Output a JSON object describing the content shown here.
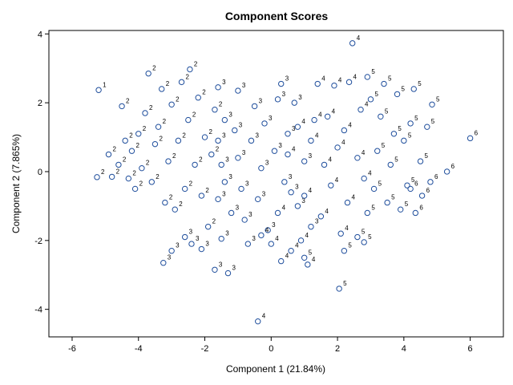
{
  "chart_data": {
    "type": "scatter",
    "title": "Component Scores",
    "xlabel": "Component 1 (21.84%)",
    "ylabel": "Component 2 (7.865%)",
    "xlim": [
      -6.7,
      7.0
    ],
    "ylim": [
      -4.8,
      4.1
    ],
    "xticks": [
      "-6",
      "-4",
      "-2",
      "0",
      "2",
      "4",
      "6"
    ],
    "yticks": [
      "-4",
      "-2",
      "0",
      "2",
      "4"
    ],
    "marker_color": "#1f4e9c",
    "grid": false,
    "legend": "none",
    "points": [
      {
        "x": -5.2,
        "y": 2.37,
        "label": "1"
      },
      {
        "x": -5.25,
        "y": -0.16,
        "label": "2"
      },
      {
        "x": -4.9,
        "y": 0.5,
        "label": "2"
      },
      {
        "x": -4.8,
        "y": -0.15,
        "label": "2"
      },
      {
        "x": -4.6,
        "y": 0.2,
        "label": "2"
      },
      {
        "x": -4.5,
        "y": 1.9,
        "label": "2"
      },
      {
        "x": -4.4,
        "y": 0.9,
        "label": "2"
      },
      {
        "x": -4.3,
        "y": -0.2,
        "label": "2"
      },
      {
        "x": -4.2,
        "y": 0.6,
        "label": "2"
      },
      {
        "x": -4.1,
        "y": -0.5,
        "label": "2"
      },
      {
        "x": -4.0,
        "y": 1.1,
        "label": "2"
      },
      {
        "x": -3.9,
        "y": 0.1,
        "label": "2"
      },
      {
        "x": -3.8,
        "y": 1.7,
        "label": "2"
      },
      {
        "x": -3.7,
        "y": 2.85,
        "label": "2"
      },
      {
        "x": -3.6,
        "y": -0.3,
        "label": "2"
      },
      {
        "x": -3.5,
        "y": 0.8,
        "label": "2"
      },
      {
        "x": -3.4,
        "y": 1.3,
        "label": "2"
      },
      {
        "x": -3.3,
        "y": 2.4,
        "label": "2"
      },
      {
        "x": -3.2,
        "y": -0.9,
        "label": "2"
      },
      {
        "x": -3.1,
        "y": 0.3,
        "label": "2"
      },
      {
        "x": -3.0,
        "y": 1.95,
        "label": "2"
      },
      {
        "x": -2.9,
        "y": -1.1,
        "label": "2"
      },
      {
        "x": -2.8,
        "y": 0.9,
        "label": "2"
      },
      {
        "x": -2.7,
        "y": 2.6,
        "label": "2"
      },
      {
        "x": -2.6,
        "y": -0.5,
        "label": "2"
      },
      {
        "x": -2.5,
        "y": 1.5,
        "label": "2"
      },
      {
        "x": -2.45,
        "y": 2.97,
        "label": "2"
      },
      {
        "x": -2.3,
        "y": 0.2,
        "label": "2"
      },
      {
        "x": -2.2,
        "y": 2.15,
        "label": "2"
      },
      {
        "x": -2.1,
        "y": -0.7,
        "label": "2"
      },
      {
        "x": -2.0,
        "y": 1.0,
        "label": "2"
      },
      {
        "x": -1.9,
        "y": -1.6,
        "label": "2"
      },
      {
        "x": -1.8,
        "y": 0.5,
        "label": "2"
      },
      {
        "x": -1.7,
        "y": 1.8,
        "label": "2"
      },
      {
        "x": -3.25,
        "y": -2.65,
        "label": "3"
      },
      {
        "x": -3.0,
        "y": -2.3,
        "label": "3"
      },
      {
        "x": -2.6,
        "y": -1.9,
        "label": "3"
      },
      {
        "x": -2.4,
        "y": -2.1,
        "label": "3"
      },
      {
        "x": -2.1,
        "y": -2.25,
        "label": "3"
      },
      {
        "x": -1.7,
        "y": -2.85,
        "label": "3"
      },
      {
        "x": -1.3,
        "y": -2.95,
        "label": "3"
      },
      {
        "x": -1.5,
        "y": -1.95,
        "label": "3"
      },
      {
        "x": -1.2,
        "y": -1.2,
        "label": "3"
      },
      {
        "x": -1.6,
        "y": -0.8,
        "label": "3"
      },
      {
        "x": -1.4,
        "y": -0.3,
        "label": "3"
      },
      {
        "x": -1.5,
        "y": 0.2,
        "label": "3"
      },
      {
        "x": -1.6,
        "y": 0.9,
        "label": "3"
      },
      {
        "x": -1.4,
        "y": 1.5,
        "label": "3"
      },
      {
        "x": -1.6,
        "y": 2.45,
        "label": "3"
      },
      {
        "x": -1.0,
        "y": 2.35,
        "label": "3"
      },
      {
        "x": -1.1,
        "y": 1.2,
        "label": "3"
      },
      {
        "x": -1.0,
        "y": 0.4,
        "label": "3"
      },
      {
        "x": -0.9,
        "y": -0.5,
        "label": "3"
      },
      {
        "x": -0.8,
        "y": -1.4,
        "label": "3"
      },
      {
        "x": -0.7,
        "y": -2.1,
        "label": "3"
      },
      {
        "x": -0.6,
        "y": 0.9,
        "label": "3"
      },
      {
        "x": -0.5,
        "y": 1.9,
        "label": "3"
      },
      {
        "x": -0.4,
        "y": -0.8,
        "label": "3"
      },
      {
        "x": -0.3,
        "y": 0.1,
        "label": "3"
      },
      {
        "x": -0.2,
        "y": 1.4,
        "label": "3"
      },
      {
        "x": -0.1,
        "y": -1.7,
        "label": "3"
      },
      {
        "x": 0.1,
        "y": 0.6,
        "label": "3"
      },
      {
        "x": 0.2,
        "y": 2.1,
        "label": "3"
      },
      {
        "x": 0.3,
        "y": 2.55,
        "label": "3"
      },
      {
        "x": 0.4,
        "y": -0.3,
        "label": "3"
      },
      {
        "x": 0.5,
        "y": 1.1,
        "label": "3"
      },
      {
        "x": 0.7,
        "y": 2.0,
        "label": "3"
      },
      {
        "x": 0.8,
        "y": -1.0,
        "label": "3"
      },
      {
        "x": 1.0,
        "y": 0.3,
        "label": "3"
      },
      {
        "x": 1.2,
        "y": -1.6,
        "label": "3"
      },
      {
        "x": 0.6,
        "y": -0.6,
        "label": "3"
      },
      {
        "x": -0.4,
        "y": -4.35,
        "label": "4"
      },
      {
        "x": -0.3,
        "y": -1.85,
        "label": "4"
      },
      {
        "x": 0.0,
        "y": -2.1,
        "label": "4"
      },
      {
        "x": 0.3,
        "y": -2.6,
        "label": "4"
      },
      {
        "x": 0.6,
        "y": -2.3,
        "label": "4"
      },
      {
        "x": 0.9,
        "y": -2.0,
        "label": "4"
      },
      {
        "x": 1.1,
        "y": -2.7,
        "label": "4"
      },
      {
        "x": 0.5,
        "y": 0.5,
        "label": "4"
      },
      {
        "x": 0.8,
        "y": 1.3,
        "label": "4"
      },
      {
        "x": 1.0,
        "y": -0.7,
        "label": "4"
      },
      {
        "x": 1.2,
        "y": 0.9,
        "label": "4"
      },
      {
        "x": 1.4,
        "y": 2.55,
        "label": "4"
      },
      {
        "x": 1.5,
        "y": -1.3,
        "label": "4"
      },
      {
        "x": 1.6,
        "y": 0.2,
        "label": "4"
      },
      {
        "x": 1.7,
        "y": 1.6,
        "label": "4"
      },
      {
        "x": 1.8,
        "y": -0.4,
        "label": "4"
      },
      {
        "x": 1.9,
        "y": 2.5,
        "label": "4"
      },
      {
        "x": 2.0,
        "y": 0.7,
        "label": "4"
      },
      {
        "x": 2.1,
        "y": -1.8,
        "label": "4"
      },
      {
        "x": 2.2,
        "y": 1.2,
        "label": "4"
      },
      {
        "x": 2.3,
        "y": -0.9,
        "label": "4"
      },
      {
        "x": 2.35,
        "y": 2.6,
        "label": "4"
      },
      {
        "x": 2.45,
        "y": 3.73,
        "label": "4"
      },
      {
        "x": 2.6,
        "y": 0.4,
        "label": "4"
      },
      {
        "x": 2.7,
        "y": 1.8,
        "label": "4"
      },
      {
        "x": 2.8,
        "y": -0.2,
        "label": "4"
      },
      {
        "x": 1.3,
        "y": 1.5,
        "label": "4"
      },
      {
        "x": 0.2,
        "y": -1.2,
        "label": "4"
      },
      {
        "x": 2.05,
        "y": -3.4,
        "label": "5"
      },
      {
        "x": 1.0,
        "y": -2.5,
        "label": "5"
      },
      {
        "x": 2.2,
        "y": -2.3,
        "label": "5"
      },
      {
        "x": 2.6,
        "y": -1.9,
        "label": "5"
      },
      {
        "x": 2.8,
        "y": -2.05,
        "label": "5"
      },
      {
        "x": 2.9,
        "y": -1.2,
        "label": "5"
      },
      {
        "x": 3.1,
        "y": -0.5,
        "label": "5"
      },
      {
        "x": 3.2,
        "y": 0.6,
        "label": "5"
      },
      {
        "x": 3.3,
        "y": 1.6,
        "label": "5"
      },
      {
        "x": 3.4,
        "y": 2.55,
        "label": "5"
      },
      {
        "x": 3.5,
        "y": -0.9,
        "label": "5"
      },
      {
        "x": 3.6,
        "y": 0.2,
        "label": "5"
      },
      {
        "x": 3.7,
        "y": 1.1,
        "label": "5"
      },
      {
        "x": 3.8,
        "y": 2.25,
        "label": "5"
      },
      {
        "x": 3.9,
        "y": -1.1,
        "label": "5"
      },
      {
        "x": 4.0,
        "y": 0.9,
        "label": "5"
      },
      {
        "x": 4.1,
        "y": -0.4,
        "label": "5"
      },
      {
        "x": 4.2,
        "y": 1.4,
        "label": "5"
      },
      {
        "x": 4.3,
        "y": 2.4,
        "label": "5"
      },
      {
        "x": 4.5,
        "y": 0.3,
        "label": "5"
      },
      {
        "x": 4.7,
        "y": 1.3,
        "label": "5"
      },
      {
        "x": 4.85,
        "y": 1.95,
        "label": "5"
      },
      {
        "x": 2.9,
        "y": 2.75,
        "label": "5"
      },
      {
        "x": 3.0,
        "y": 2.1,
        "label": "5"
      },
      {
        "x": 4.35,
        "y": -1.2,
        "label": "6"
      },
      {
        "x": 4.55,
        "y": -0.7,
        "label": "6"
      },
      {
        "x": 4.8,
        "y": -0.3,
        "label": "6"
      },
      {
        "x": 5.3,
        "y": 0.0,
        "label": "6"
      },
      {
        "x": 6.0,
        "y": 0.97,
        "label": "6"
      },
      {
        "x": 4.2,
        "y": -0.5,
        "label": "6"
      }
    ]
  }
}
